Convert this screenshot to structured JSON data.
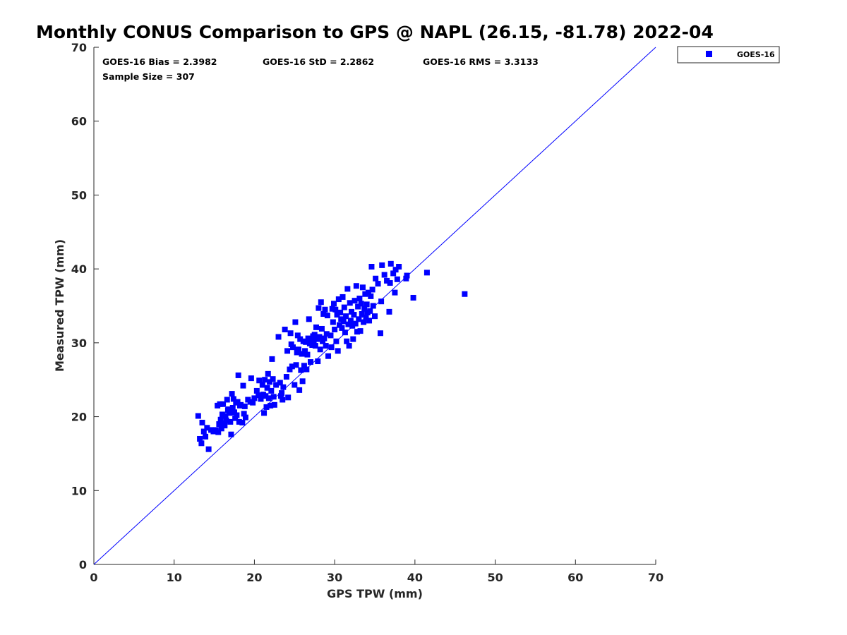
{
  "chart_data": {
    "type": "scatter",
    "title": "Monthly CONUS Comparison to GPS @ NAPL (26.15, -81.78) 2022-04",
    "xlabel": "GPS TPW (mm)",
    "ylabel": "Measured TPW (mm)",
    "xlim": [
      0,
      70
    ],
    "ylim": [
      0,
      70
    ],
    "xticks": [
      0,
      10,
      20,
      30,
      40,
      50,
      60,
      70
    ],
    "yticks": [
      0,
      10,
      20,
      30,
      40,
      50,
      60,
      70
    ],
    "grid": false,
    "legend_position": "outside-top-right",
    "stats": {
      "bias": "GOES-16 Bias = 2.3982",
      "std": "GOES-16 StD = 2.2862",
      "rms": "GOES-16 RMS = 3.3133",
      "sample_size": "Sample Size = 307"
    },
    "reference_line": {
      "from": [
        0,
        0
      ],
      "to": [
        70,
        70
      ],
      "color": "#0000ff"
    },
    "series": [
      {
        "name": "GOES-16",
        "color": "#0000ff",
        "marker": "square",
        "points": [
          [
            13.0,
            20.1
          ],
          [
            13.2,
            17.0
          ],
          [
            13.4,
            16.4
          ],
          [
            13.5,
            19.2
          ],
          [
            13.7,
            18.0
          ],
          [
            13.9,
            17.3
          ],
          [
            14.1,
            18.5
          ],
          [
            14.3,
            15.6
          ],
          [
            14.6,
            18.2
          ],
          [
            14.9,
            18.0
          ],
          [
            15.2,
            18.2
          ],
          [
            15.4,
            21.5
          ],
          [
            15.5,
            17.9
          ],
          [
            15.6,
            19.0
          ],
          [
            15.7,
            21.7
          ],
          [
            15.8,
            19.6
          ],
          [
            15.9,
            18.4
          ],
          [
            16.0,
            20.3
          ],
          [
            16.1,
            21.7
          ],
          [
            16.2,
            19.1
          ],
          [
            16.3,
            18.8
          ],
          [
            16.4,
            20.1
          ],
          [
            16.5,
            19.5
          ],
          [
            16.6,
            22.3
          ],
          [
            16.7,
            20.9
          ],
          [
            16.8,
            21.0
          ],
          [
            16.9,
            20.5
          ],
          [
            17.0,
            19.3
          ],
          [
            17.1,
            17.6
          ],
          [
            17.2,
            23.1
          ],
          [
            17.3,
            21.2
          ],
          [
            17.4,
            22.4
          ],
          [
            17.5,
            20.6
          ],
          [
            17.6,
            19.8
          ],
          [
            17.7,
            21.9
          ],
          [
            17.8,
            20.2
          ],
          [
            17.9,
            22.0
          ],
          [
            18.0,
            25.6
          ],
          [
            18.1,
            19.3
          ],
          [
            18.2,
            21.5
          ],
          [
            18.3,
            21.6
          ],
          [
            18.5,
            19.2
          ],
          [
            18.6,
            24.2
          ],
          [
            18.7,
            20.4
          ],
          [
            18.8,
            21.4
          ],
          [
            18.9,
            19.9
          ],
          [
            19.2,
            22.3
          ],
          [
            19.5,
            22.0
          ],
          [
            19.6,
            25.2
          ],
          [
            19.8,
            21.9
          ],
          [
            20.0,
            22.5
          ],
          [
            20.3,
            23.5
          ],
          [
            20.5,
            22.9
          ],
          [
            20.6,
            24.9
          ],
          [
            20.8,
            22.4
          ],
          [
            21.0,
            24.3
          ],
          [
            21.1,
            23.0
          ],
          [
            21.2,
            20.5
          ],
          [
            21.3,
            25.0
          ],
          [
            21.4,
            22.8
          ],
          [
            21.5,
            21.3
          ],
          [
            21.6,
            23.9
          ],
          [
            21.7,
            25.8
          ],
          [
            21.8,
            22.5
          ],
          [
            21.9,
            24.7
          ],
          [
            22.0,
            21.5
          ],
          [
            22.1,
            23.5
          ],
          [
            22.2,
            27.8
          ],
          [
            22.3,
            25.1
          ],
          [
            22.4,
            22.7
          ],
          [
            22.5,
            21.6
          ],
          [
            22.7,
            24.3
          ],
          [
            23.0,
            30.8
          ],
          [
            23.2,
            24.6
          ],
          [
            23.3,
            22.8
          ],
          [
            23.4,
            23.2
          ],
          [
            23.5,
            22.3
          ],
          [
            23.6,
            24.0
          ],
          [
            23.8,
            31.8
          ],
          [
            24.0,
            25.4
          ],
          [
            24.1,
            28.9
          ],
          [
            24.2,
            22.6
          ],
          [
            24.4,
            26.4
          ],
          [
            24.5,
            31.3
          ],
          [
            24.6,
            29.8
          ],
          [
            24.7,
            26.8
          ],
          [
            24.8,
            29.4
          ],
          [
            25.0,
            24.3
          ],
          [
            25.1,
            32.8
          ],
          [
            25.2,
            27.0
          ],
          [
            25.3,
            28.7
          ],
          [
            25.4,
            31.0
          ],
          [
            25.5,
            29.1
          ],
          [
            25.6,
            23.6
          ],
          [
            25.7,
            30.5
          ],
          [
            25.8,
            26.3
          ],
          [
            25.9,
            28.5
          ],
          [
            26.0,
            24.8
          ],
          [
            26.1,
            30.2
          ],
          [
            26.2,
            26.9
          ],
          [
            26.3,
            28.9
          ],
          [
            26.4,
            30.1
          ],
          [
            26.5,
            26.4
          ],
          [
            26.6,
            28.4
          ],
          [
            26.7,
            30.6
          ],
          [
            26.8,
            33.2
          ],
          [
            26.9,
            29.9
          ],
          [
            27.0,
            27.4
          ],
          [
            27.1,
            30.4
          ],
          [
            27.2,
            29.7
          ],
          [
            27.3,
            30.9
          ],
          [
            27.4,
            30.2
          ],
          [
            27.5,
            31.1
          ],
          [
            27.6,
            29.6
          ],
          [
            27.7,
            32.1
          ],
          [
            27.8,
            30.5
          ],
          [
            27.9,
            27.5
          ],
          [
            28.0,
            34.7
          ],
          [
            28.1,
            30.8
          ],
          [
            28.2,
            29.1
          ],
          [
            28.3,
            35.5
          ],
          [
            28.4,
            31.9
          ],
          [
            28.5,
            30.2
          ],
          [
            28.6,
            33.9
          ],
          [
            28.7,
            30.6
          ],
          [
            28.8,
            34.5
          ],
          [
            28.9,
            29.6
          ],
          [
            29.0,
            31.2
          ],
          [
            29.1,
            33.7
          ],
          [
            29.2,
            28.2
          ],
          [
            29.5,
            31.0
          ],
          [
            29.6,
            29.4
          ],
          [
            29.7,
            34.6
          ],
          [
            29.8,
            32.8
          ],
          [
            29.9,
            35.3
          ],
          [
            30.0,
            31.8
          ],
          [
            30.1,
            34.5
          ],
          [
            30.2,
            30.2
          ],
          [
            30.3,
            33.8
          ],
          [
            30.4,
            28.9
          ],
          [
            30.5,
            35.9
          ],
          [
            30.6,
            32.4
          ],
          [
            30.7,
            34.1
          ],
          [
            30.8,
            33.2
          ],
          [
            30.9,
            32.0
          ],
          [
            31.0,
            36.2
          ],
          [
            31.1,
            32.9
          ],
          [
            31.2,
            34.8
          ],
          [
            31.3,
            31.4
          ],
          [
            31.4,
            33.6
          ],
          [
            31.5,
            30.2
          ],
          [
            31.6,
            37.3
          ],
          [
            31.7,
            32.5
          ],
          [
            31.8,
            29.6
          ],
          [
            31.9,
            35.4
          ],
          [
            32.0,
            33.0
          ],
          [
            32.1,
            34.2
          ],
          [
            32.2,
            32.3
          ],
          [
            32.3,
            30.5
          ],
          [
            32.4,
            33.8
          ],
          [
            32.5,
            35.7
          ],
          [
            32.6,
            32.6
          ],
          [
            32.7,
            37.7
          ],
          [
            32.8,
            31.5
          ],
          [
            32.9,
            34.9
          ],
          [
            33.0,
            33.2
          ],
          [
            33.1,
            36.0
          ],
          [
            33.2,
            31.6
          ],
          [
            33.3,
            35.3
          ],
          [
            33.4,
            33.9
          ],
          [
            33.5,
            37.5
          ],
          [
            33.6,
            32.8
          ],
          [
            33.7,
            34.6
          ],
          [
            33.8,
            36.6
          ],
          [
            33.9,
            33.4
          ],
          [
            34.0,
            35.2
          ],
          [
            34.1,
            34.1
          ],
          [
            34.2,
            36.8
          ],
          [
            34.3,
            33.0
          ],
          [
            34.4,
            34.3
          ],
          [
            34.5,
            36.3
          ],
          [
            34.6,
            40.3
          ],
          [
            34.7,
            37.2
          ],
          [
            34.8,
            35.0
          ],
          [
            35.0,
            33.6
          ],
          [
            35.1,
            38.7
          ],
          [
            35.4,
            38.0
          ],
          [
            35.7,
            31.3
          ],
          [
            35.8,
            35.6
          ],
          [
            35.9,
            40.5
          ],
          [
            36.2,
            39.2
          ],
          [
            36.5,
            38.4
          ],
          [
            36.8,
            34.2
          ],
          [
            36.9,
            38.1
          ],
          [
            37.0,
            40.7
          ],
          [
            37.3,
            39.4
          ],
          [
            37.5,
            36.8
          ],
          [
            37.6,
            39.9
          ],
          [
            37.8,
            38.6
          ],
          [
            38.0,
            40.3
          ],
          [
            38.9,
            38.7
          ],
          [
            39.0,
            39.1
          ],
          [
            39.8,
            36.1
          ],
          [
            41.5,
            39.5
          ],
          [
            46.2,
            36.6
          ]
        ]
      }
    ]
  }
}
